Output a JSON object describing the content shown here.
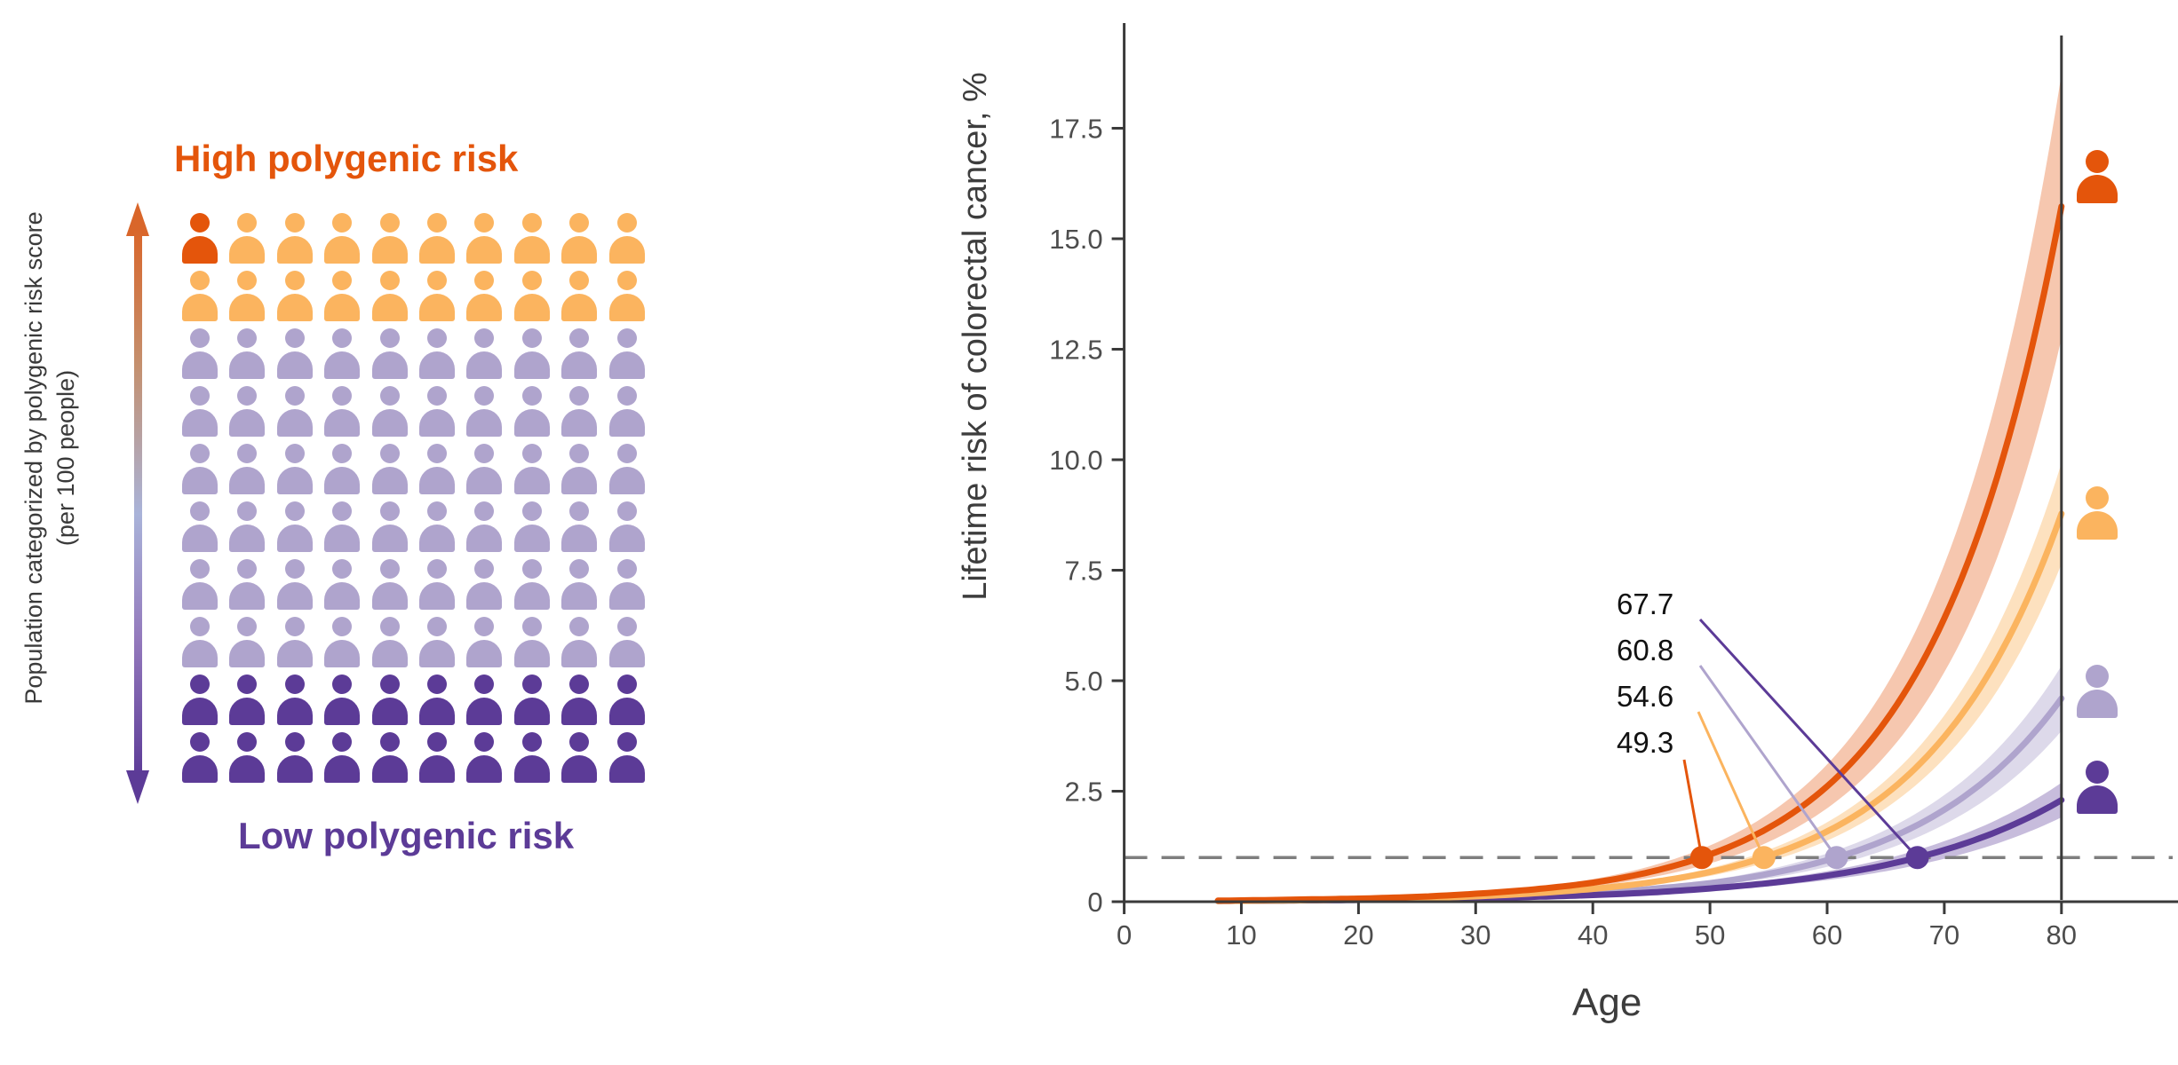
{
  "colors": {
    "darkOrange": "#E4550B",
    "lightOrange": "#FBB45F",
    "lightPurple": "#AFA4CD",
    "darkPurple": "#5C3B97",
    "axisLine": "#3A3A3A",
    "tickText": "#4D4D4D",
    "axisTitle": "#3D3D3D",
    "dashedLine": "#7E7E7E",
    "annotationText": "#111111",
    "leftLabelText": "#3A3A3A"
  },
  "left_panel": {
    "rotated_axis_label_line1": "Population categorized by polygenic risk score",
    "rotated_axis_label_line2": "(per 100 people)",
    "title_top": "High polygenic risk",
    "title_bottom": "Low polygenic risk",
    "pictogram": {
      "rows": 10,
      "cols": 10,
      "row_colors": [
        "lightOrange",
        "lightOrange",
        "lightPurple",
        "lightPurple",
        "lightPurple",
        "lightPurple",
        "lightPurple",
        "lightPurple",
        "darkPurple",
        "darkPurple"
      ],
      "highlight_cell": {
        "row": 0,
        "col": 0,
        "color": "darkOrange"
      }
    }
  },
  "chart_data": {
    "type": "line",
    "title": "",
    "xlabel": "Age",
    "ylabel": "Lifetime risk of colorectal cancer, %",
    "xlim": [
      0,
      90
    ],
    "ylim": [
      0,
      19.8
    ],
    "grid": false,
    "legend": "none (person-icon markers at right edge, colors match population groups)",
    "x_ticks": [
      "0",
      "10",
      "20",
      "30",
      "40",
      "50",
      "60",
      "70",
      "80"
    ],
    "x_tick_values": [
      0,
      10,
      20,
      30,
      40,
      50,
      60,
      70,
      80
    ],
    "y_ticks": [
      "0",
      "2.5",
      "5.0",
      "7.5",
      "10.0",
      "12.5",
      "15.0",
      "17.5"
    ],
    "y_tick_values": [
      0,
      2.5,
      5.0,
      7.5,
      10.0,
      12.5,
      15.0,
      17.5
    ],
    "threshold_line": {
      "y": 1.0,
      "style": "dashed"
    },
    "vline_x": 80,
    "curve_start_age": 8,
    "series": [
      {
        "id": "dark-orange",
        "color_key": "darkOrange",
        "ribbon_opacity": 0.33,
        "ages": [
          10,
          15,
          20,
          25,
          30,
          35,
          40,
          45,
          50,
          55,
          60,
          65,
          70,
          75,
          80
        ],
        "values": [
          0.03,
          0.05,
          0.07,
          0.11,
          0.18,
          0.28,
          0.43,
          0.68,
          1.07,
          1.67,
          2.61,
          4.09,
          6.41,
          10.04,
          15.73
        ],
        "ci_frac": 0.19,
        "crossing_age_at_1pct": 49.3,
        "value_at_80": 15.7,
        "icon_value": 16.4
      },
      {
        "id": "light-orange",
        "color_key": "lightOrange",
        "ribbon_opacity": 0.4,
        "ages": [
          10,
          15,
          20,
          25,
          30,
          35,
          40,
          45,
          50,
          55,
          60,
          65,
          70,
          75,
          80
        ],
        "values": [
          0.02,
          0.03,
          0.05,
          0.08,
          0.12,
          0.19,
          0.29,
          0.44,
          0.67,
          1.04,
          1.59,
          2.43,
          3.73,
          5.72,
          8.78
        ],
        "ci_frac": 0.13,
        "crossing_age_at_1pct": 54.6,
        "value_at_80": 8.8,
        "icon_value": 8.8
      },
      {
        "id": "light-purple",
        "color_key": "lightPurple",
        "ribbon_opacity": 0.42,
        "ages": [
          10,
          15,
          20,
          25,
          30,
          35,
          40,
          45,
          50,
          55,
          60,
          65,
          70,
          75,
          80
        ],
        "values": [
          0.02,
          0.03,
          0.04,
          0.06,
          0.09,
          0.13,
          0.19,
          0.29,
          0.42,
          0.63,
          0.94,
          1.4,
          2.08,
          3.09,
          4.6
        ],
        "ci_frac": 0.16,
        "crossing_age_at_1pct": 60.8,
        "value_at_80": 4.6,
        "icon_value": 4.75
      },
      {
        "id": "dark-purple",
        "color_key": "darkPurple",
        "ribbon_opacity": 0.34,
        "ages": [
          10,
          15,
          20,
          25,
          30,
          35,
          40,
          45,
          50,
          55,
          60,
          65,
          70,
          75,
          80
        ],
        "values": [
          0.02,
          0.03,
          0.04,
          0.06,
          0.08,
          0.11,
          0.15,
          0.21,
          0.3,
          0.42,
          0.59,
          0.83,
          1.17,
          1.64,
          2.3
        ],
        "ci_frac": 0.17,
        "crossing_age_at_1pct": 67.7,
        "value_at_80": 2.3,
        "icon_value": 2.6
      }
    ],
    "annotations": [
      {
        "label": "67.7",
        "series": "dark-purple"
      },
      {
        "label": "60.8",
        "series": "light-purple"
      },
      {
        "label": "54.6",
        "series": "light-orange"
      },
      {
        "label": "49.3",
        "series": "dark-orange"
      }
    ]
  }
}
